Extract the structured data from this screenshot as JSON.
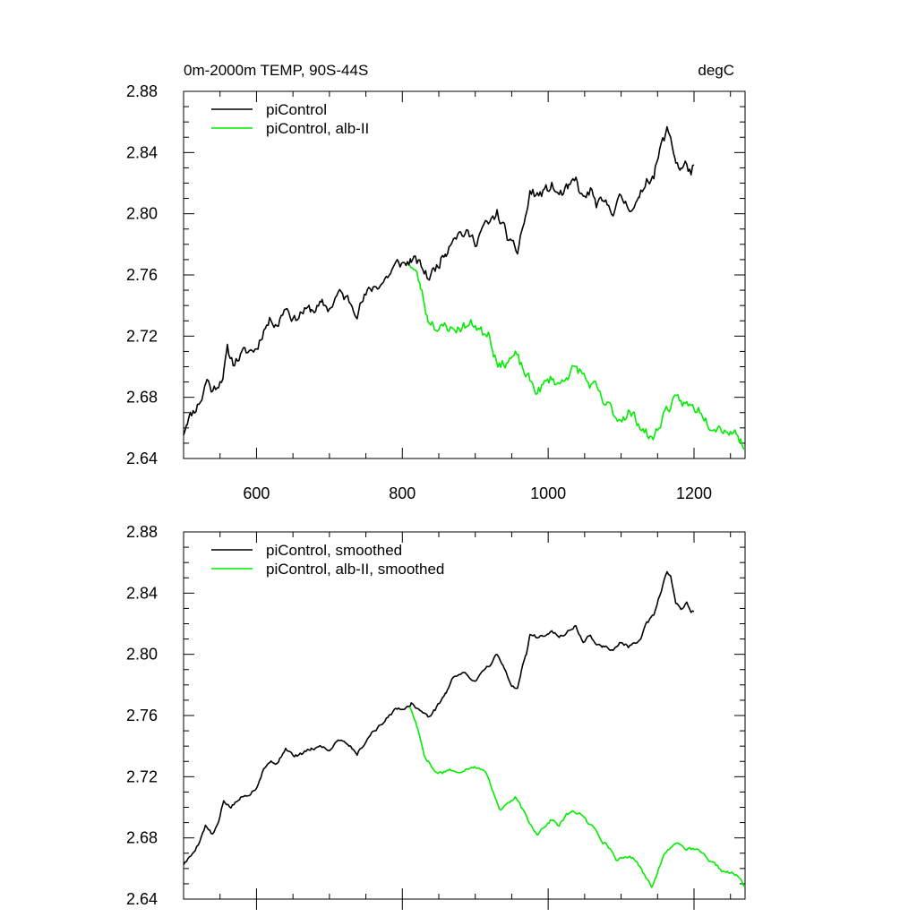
{
  "figure": {
    "title_left": "0m-2000m TEMP, 90S-44S",
    "title_right": "degC"
  },
  "chart_data": [
    {
      "type": "line",
      "title": "0m-2000m TEMP, 90S-44S",
      "units": "degC",
      "xlim": [
        500,
        1270
      ],
      "ylim": [
        2.64,
        2.88
      ],
      "x_ticks": [
        600,
        800,
        1000,
        1200
      ],
      "x_tick_labels": [
        "600",
        "800",
        "1000",
        "1200"
      ],
      "y_ticks": [
        2.64,
        2.68,
        2.72,
        2.76,
        2.8,
        2.84,
        2.88
      ],
      "y_tick_labels": [
        "2.64",
        "2.68",
        "2.72",
        "2.76",
        "2.80",
        "2.84",
        "2.88"
      ],
      "legend": [
        "piControl",
        "piControl, alb-II"
      ],
      "legend_location": "top-left",
      "series": [
        {
          "name": "piControl",
          "color": "#000000",
          "noise": 0.004,
          "seed": 11,
          "points": [
            [
              500,
              2.657
            ],
            [
              505,
              2.666
            ],
            [
              515,
              2.672
            ],
            [
              525,
              2.68
            ],
            [
              532,
              2.692
            ],
            [
              540,
              2.684
            ],
            [
              548,
              2.69
            ],
            [
              555,
              2.696
            ],
            [
              560,
              2.71
            ],
            [
              568,
              2.703
            ],
            [
              580,
              2.708
            ],
            [
              590,
              2.71
            ],
            [
              600,
              2.712
            ],
            [
              610,
              2.725
            ],
            [
              620,
              2.731
            ],
            [
              630,
              2.729
            ],
            [
              640,
              2.74
            ],
            [
              652,
              2.731
            ],
            [
              662,
              2.736
            ],
            [
              675,
              2.737
            ],
            [
              690,
              2.74
            ],
            [
              700,
              2.738
            ],
            [
              712,
              2.748
            ],
            [
              725,
              2.744
            ],
            [
              738,
              2.737
            ],
            [
              748,
              2.745
            ],
            [
              760,
              2.752
            ],
            [
              772,
              2.755
            ],
            [
              785,
              2.762
            ],
            [
              795,
              2.768
            ],
            [
              805,
              2.767
            ],
            [
              812,
              2.77
            ],
            [
              820,
              2.768
            ],
            [
              828,
              2.764
            ],
            [
              835,
              2.758
            ],
            [
              845,
              2.764
            ],
            [
              860,
              2.776
            ],
            [
              870,
              2.787
            ],
            [
              880,
              2.788
            ],
            [
              890,
              2.786
            ],
            [
              900,
              2.782
            ],
            [
              910,
              2.791
            ],
            [
              920,
              2.793
            ],
            [
              930,
              2.8
            ],
            [
              940,
              2.79
            ],
            [
              950,
              2.778
            ],
            [
              958,
              2.775
            ],
            [
              963,
              2.788
            ],
            [
              970,
              2.799
            ],
            [
              975,
              2.814
            ],
            [
              985,
              2.812
            ],
            [
              995,
              2.814
            ],
            [
              1005,
              2.818
            ],
            [
              1015,
              2.812
            ],
            [
              1028,
              2.816
            ],
            [
              1038,
              2.821
            ],
            [
              1048,
              2.809
            ],
            [
              1058,
              2.815
            ],
            [
              1066,
              2.806
            ],
            [
              1075,
              2.806
            ],
            [
              1090,
              2.803
            ],
            [
              1100,
              2.81
            ],
            [
              1110,
              2.805
            ],
            [
              1125,
              2.808
            ],
            [
              1135,
              2.823
            ],
            [
              1145,
              2.826
            ],
            [
              1155,
              2.844
            ],
            [
              1163,
              2.854
            ],
            [
              1168,
              2.85
            ],
            [
              1175,
              2.835
            ],
            [
              1182,
              2.829
            ],
            [
              1190,
              2.832
            ],
            [
              1196,
              2.827
            ],
            [
              1200,
              2.832
            ]
          ]
        },
        {
          "name": "piControl, alb-II",
          "color": "#00ee00",
          "noise": 0.004,
          "seed": 23,
          "points": [
            [
              810,
              2.768
            ],
            [
              818,
              2.762
            ],
            [
              825,
              2.752
            ],
            [
              830,
              2.742
            ],
            [
              835,
              2.731
            ],
            [
              842,
              2.73
            ],
            [
              850,
              2.723
            ],
            [
              860,
              2.727
            ],
            [
              870,
              2.724
            ],
            [
              880,
              2.726
            ],
            [
              890,
              2.727
            ],
            [
              900,
              2.728
            ],
            [
              910,
              2.722
            ],
            [
              918,
              2.724
            ],
            [
              925,
              2.711
            ],
            [
              935,
              2.7
            ],
            [
              945,
              2.705
            ],
            [
              955,
              2.707
            ],
            [
              963,
              2.7
            ],
            [
              975,
              2.69
            ],
            [
              985,
              2.684
            ],
            [
              995,
              2.688
            ],
            [
              1005,
              2.693
            ],
            [
              1015,
              2.688
            ],
            [
              1025,
              2.695
            ],
            [
              1035,
              2.698
            ],
            [
              1045,
              2.697
            ],
            [
              1055,
              2.689
            ],
            [
              1065,
              2.686
            ],
            [
              1075,
              2.676
            ],
            [
              1085,
              2.673
            ],
            [
              1095,
              2.666
            ],
            [
              1110,
              2.67
            ],
            [
              1122,
              2.665
            ],
            [
              1132,
              2.658
            ],
            [
              1142,
              2.652
            ],
            [
              1150,
              2.659
            ],
            [
              1160,
              2.671
            ],
            [
              1170,
              2.676
            ],
            [
              1180,
              2.677
            ],
            [
              1190,
              2.675
            ],
            [
              1200,
              2.673
            ],
            [
              1210,
              2.672
            ],
            [
              1220,
              2.664
            ],
            [
              1230,
              2.662
            ],
            [
              1240,
              2.66
            ],
            [
              1250,
              2.658
            ],
            [
              1260,
              2.656
            ],
            [
              1270,
              2.647
            ]
          ]
        }
      ]
    },
    {
      "type": "line",
      "title": "",
      "xlim": [
        500,
        1270
      ],
      "ylim": [
        2.64,
        2.88
      ],
      "x_ticks": [
        600,
        800,
        1000,
        1200
      ],
      "x_tick_labels": [],
      "y_ticks": [
        2.64,
        2.68,
        2.72,
        2.76,
        2.8,
        2.84,
        2.88
      ],
      "y_tick_labels": [
        "2.64",
        "2.68",
        "2.72",
        "2.76",
        "2.80",
        "2.84",
        "2.88"
      ],
      "legend": [
        "piControl, smoothed",
        "piControl, alb-II, smoothed"
      ],
      "legend_location": "top-left",
      "series": [
        {
          "name": "piControl, smoothed",
          "color": "#000000",
          "noise": 0.0012,
          "seed": 5,
          "points": [
            [
              500,
              2.663
            ],
            [
              510,
              2.668
            ],
            [
              520,
              2.676
            ],
            [
              530,
              2.688
            ],
            [
              540,
              2.682
            ],
            [
              548,
              2.69
            ],
            [
              555,
              2.704
            ],
            [
              565,
              2.7
            ],
            [
              578,
              2.706
            ],
            [
              590,
              2.709
            ],
            [
              600,
              2.713
            ],
            [
              610,
              2.726
            ],
            [
              620,
              2.73
            ],
            [
              630,
              2.729
            ],
            [
              640,
              2.739
            ],
            [
              652,
              2.733
            ],
            [
              662,
              2.735
            ],
            [
              675,
              2.738
            ],
            [
              690,
              2.74
            ],
            [
              700,
              2.737
            ],
            [
              712,
              2.745
            ],
            [
              725,
              2.742
            ],
            [
              738,
              2.735
            ],
            [
              748,
              2.742
            ],
            [
              760,
              2.75
            ],
            [
              772,
              2.754
            ],
            [
              785,
              2.762
            ],
            [
              795,
              2.765
            ],
            [
              805,
              2.765
            ],
            [
              812,
              2.768
            ],
            [
              820,
              2.765
            ],
            [
              828,
              2.762
            ],
            [
              835,
              2.759
            ],
            [
              845,
              2.764
            ],
            [
              860,
              2.775
            ],
            [
              870,
              2.785
            ],
            [
              880,
              2.788
            ],
            [
              890,
              2.786
            ],
            [
              900,
              2.782
            ],
            [
              910,
              2.79
            ],
            [
              920,
              2.793
            ],
            [
              930,
              2.8
            ],
            [
              940,
              2.79
            ],
            [
              950,
              2.779
            ],
            [
              958,
              2.777
            ],
            [
              963,
              2.789
            ],
            [
              970,
              2.8
            ],
            [
              975,
              2.813
            ],
            [
              985,
              2.811
            ],
            [
              995,
              2.813
            ],
            [
              1005,
              2.816
            ],
            [
              1015,
              2.811
            ],
            [
              1028,
              2.815
            ],
            [
              1038,
              2.819
            ],
            [
              1048,
              2.807
            ],
            [
              1058,
              2.813
            ],
            [
              1066,
              2.806
            ],
            [
              1075,
              2.805
            ],
            [
              1090,
              2.803
            ],
            [
              1100,
              2.808
            ],
            [
              1110,
              2.805
            ],
            [
              1125,
              2.808
            ],
            [
              1135,
              2.82
            ],
            [
              1145,
              2.825
            ],
            [
              1155,
              2.842
            ],
            [
              1163,
              2.854
            ],
            [
              1168,
              2.85
            ],
            [
              1175,
              2.833
            ],
            [
              1182,
              2.83
            ],
            [
              1190,
              2.834
            ],
            [
              1196,
              2.828
            ],
            [
              1200,
              2.828
            ]
          ]
        },
        {
          "name": "piControl, alb-II, smoothed",
          "color": "#00ee00",
          "noise": 0.0012,
          "seed": 17,
          "points": [
            [
              810,
              2.766
            ],
            [
              818,
              2.756
            ],
            [
              825,
              2.745
            ],
            [
              830,
              2.734
            ],
            [
              836,
              2.73
            ],
            [
              845,
              2.723
            ],
            [
              855,
              2.723
            ],
            [
              865,
              2.725
            ],
            [
              875,
              2.722
            ],
            [
              885,
              2.725
            ],
            [
              895,
              2.727
            ],
            [
              905,
              2.726
            ],
            [
              915,
              2.722
            ],
            [
              925,
              2.71
            ],
            [
              935,
              2.698
            ],
            [
              945,
              2.703
            ],
            [
              955,
              2.706
            ],
            [
              963,
              2.7
            ],
            [
              975,
              2.689
            ],
            [
              985,
              2.683
            ],
            [
              995,
              2.688
            ],
            [
              1005,
              2.692
            ],
            [
              1015,
              2.688
            ],
            [
              1025,
              2.695
            ],
            [
              1035,
              2.697
            ],
            [
              1045,
              2.696
            ],
            [
              1055,
              2.689
            ],
            [
              1065,
              2.686
            ],
            [
              1075,
              2.678
            ],
            [
              1085,
              2.673
            ],
            [
              1095,
              2.665
            ],
            [
              1110,
              2.668
            ],
            [
              1122,
              2.665
            ],
            [
              1132,
              2.656
            ],
            [
              1142,
              2.649
            ],
            [
              1150,
              2.657
            ],
            [
              1160,
              2.67
            ],
            [
              1170,
              2.675
            ],
            [
              1180,
              2.677
            ],
            [
              1190,
              2.673
            ],
            [
              1200,
              2.672
            ],
            [
              1210,
              2.671
            ],
            [
              1220,
              2.664
            ],
            [
              1230,
              2.662
            ],
            [
              1240,
              2.658
            ],
            [
              1250,
              2.657
            ],
            [
              1260,
              2.655
            ],
            [
              1270,
              2.648
            ]
          ]
        }
      ]
    }
  ]
}
